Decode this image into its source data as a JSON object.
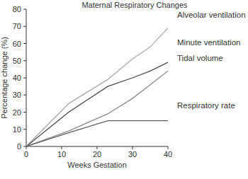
{
  "chart_data": {
    "type": "line",
    "title": "Maternal Respiratory Changes",
    "x_label": "Weeks Gestation",
    "y_label": "Percentage change (%)",
    "x": [
      0,
      12,
      23,
      30,
      35,
      40
    ],
    "series": [
      {
        "name": "Alveolar ventilation",
        "color": "#a8a8a8",
        "values": [
          0,
          25,
          39,
          51,
          58,
          69
        ]
      },
      {
        "name": "Minute ventilation",
        "color": "#4a4a4a",
        "values": [
          0,
          20,
          35,
          40,
          44,
          49
        ]
      },
      {
        "name": "Tidal volume",
        "color": "#8a8a8a",
        "values": [
          0,
          9,
          19,
          28,
          36,
          44
        ]
      },
      {
        "name": "Respiratory rate",
        "color": "#5e5e5e",
        "values": [
          0,
          8,
          15,
          15,
          15,
          15
        ]
      }
    ],
    "xlim": [
      0,
      40
    ],
    "xticks": [
      0,
      10,
      20,
      30,
      40
    ],
    "ylim": [
      0,
      80
    ],
    "yticks": [
      0,
      10,
      20,
      30,
      40,
      50,
      60,
      70,
      80
    ],
    "grid": false
  }
}
